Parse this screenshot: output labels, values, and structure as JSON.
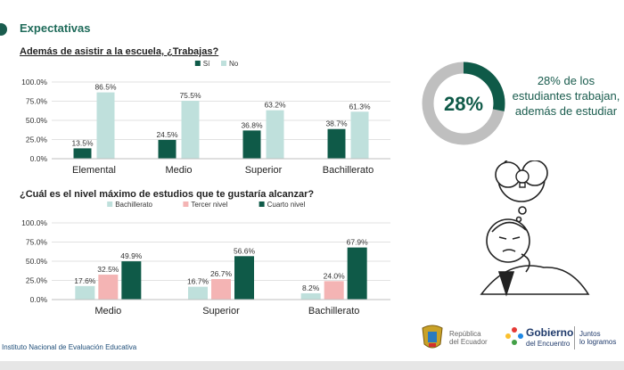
{
  "section_title": "Expectativas",
  "colors": {
    "dark": "#0f5a48",
    "light": "#bfe0dc",
    "pink": "#f4b4b4",
    "accent": "#1f6b5a"
  },
  "chart_data": [
    {
      "type": "bar",
      "title": "Además de asistir a la escuela, ¿Trabajas?",
      "categories": [
        "Elemental",
        "Medio",
        "Superior",
        "Bachillerato"
      ],
      "series": [
        {
          "name": "Sí",
          "values": [
            13.5,
            24.5,
            36.8,
            38.7
          ],
          "labels": [
            "13.5%",
            "24.5%",
            "36.8%",
            "38.7%"
          ]
        },
        {
          "name": "No",
          "values": [
            86.5,
            75.5,
            63.2,
            61.3
          ],
          "labels": [
            "86.5%",
            "75.5%",
            "63.2%",
            "61.3%"
          ]
        }
      ],
      "yticks": [
        "100.0%",
        "75.0%",
        "50.0%",
        "25.0%",
        "0.0%"
      ],
      "ylim": [
        0,
        100
      ],
      "legend_position": "top-center"
    },
    {
      "type": "bar",
      "title": "¿Cuál es el nivel máximo de estudios que te gustaría alcanzar?",
      "categories": [
        "Medio",
        "Superior",
        "Bachillerato"
      ],
      "series": [
        {
          "name": "Bachillerato",
          "values": [
            17.6,
            16.7,
            8.2
          ],
          "labels": [
            "17.6%",
            "16.7%",
            "8.2%"
          ]
        },
        {
          "name": "Tercer nivel",
          "values": [
            32.5,
            26.7,
            24.0
          ],
          "labels": [
            "32.5%",
            "26.7%",
            "24.0%"
          ]
        },
        {
          "name": "Cuarto nivel",
          "values": [
            49.9,
            56.6,
            67.9
          ],
          "labels": [
            "49.9%",
            "56.6%",
            "67.9%"
          ]
        }
      ],
      "yticks": [
        "100.0%",
        "75.0%",
        "50.0%",
        "25.0%",
        "0.0%"
      ],
      "ylim": [
        0,
        100
      ],
      "legend_position": "top-center"
    }
  ],
  "highlight": {
    "value": 28,
    "label": "28%",
    "text": "28% de los estudiantes trabajan, además de estudiar"
  },
  "footer": {
    "institute": "Instituto Nacional de Evaluación Educativa"
  },
  "logos": {
    "ecuador_line1": "República",
    "ecuador_line2": "del Ecuador",
    "gob_title": "Gobierno",
    "gob_sub": "del Encuentro",
    "slogan_line1": "Juntos",
    "slogan_line2": "lo logramos"
  }
}
